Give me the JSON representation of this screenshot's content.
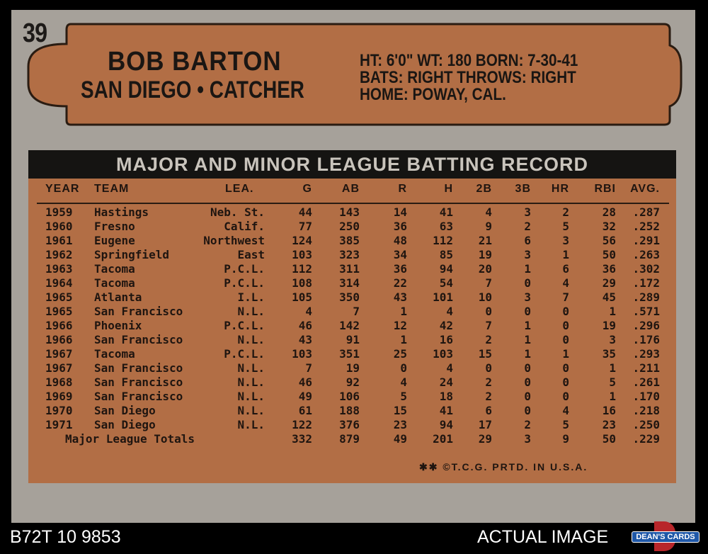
{
  "card_number": "39",
  "player": {
    "name": "BOB BARTON",
    "team_line": "SAN DIEGO • CATCHER",
    "bio_line1": "HT: 6'0\"   WT: 180   BORN: 7-30-41",
    "bio_line2": "BATS: RIGHT          THROWS: RIGHT",
    "bio_line3": "HOME: POWAY, CAL."
  },
  "record_title": "MAJOR AND MINOR LEAGUE BATTING RECORD",
  "columns": [
    "YEAR",
    "TEAM",
    "LEA.",
    "G",
    "AB",
    "R",
    "H",
    "2B",
    "3B",
    "HR",
    "RBI",
    "AVG."
  ],
  "rows": [
    [
      "1959",
      "Hastings",
      "Neb. St.",
      "44",
      "143",
      "14",
      "41",
      "4",
      "3",
      "2",
      "28",
      ".287"
    ],
    [
      "1960",
      "Fresno",
      "Calif.",
      "77",
      "250",
      "36",
      "63",
      "9",
      "2",
      "5",
      "32",
      ".252"
    ],
    [
      "1961",
      "Eugene",
      "Northwest",
      "124",
      "385",
      "48",
      "112",
      "21",
      "6",
      "3",
      "56",
      ".291"
    ],
    [
      "1962",
      "Springfield",
      "East",
      "103",
      "323",
      "34",
      "85",
      "19",
      "3",
      "1",
      "50",
      ".263"
    ],
    [
      "1963",
      "Tacoma",
      "P.C.L.",
      "112",
      "311",
      "36",
      "94",
      "20",
      "1",
      "6",
      "36",
      ".302"
    ],
    [
      "1964",
      "Tacoma",
      "P.C.L.",
      "108",
      "314",
      "22",
      "54",
      "7",
      "0",
      "4",
      "29",
      ".172"
    ],
    [
      "1965",
      "Atlanta",
      "I.L.",
      "105",
      "350",
      "43",
      "101",
      "10",
      "3",
      "7",
      "45",
      ".289"
    ],
    [
      "1965",
      "San Francisco",
      "N.L.",
      "4",
      "7",
      "1",
      "4",
      "0",
      "0",
      "0",
      "1",
      ".571"
    ],
    [
      "1966",
      "Phoenix",
      "P.C.L.",
      "46",
      "142",
      "12",
      "42",
      "7",
      "1",
      "0",
      "19",
      ".296"
    ],
    [
      "1966",
      "San Francisco",
      "N.L.",
      "43",
      "91",
      "1",
      "16",
      "2",
      "1",
      "0",
      "3",
      ".176"
    ],
    [
      "1967",
      "Tacoma",
      "P.C.L.",
      "103",
      "351",
      "25",
      "103",
      "15",
      "1",
      "1",
      "35",
      ".293"
    ],
    [
      "1967",
      "San Francisco",
      "N.L.",
      "7",
      "19",
      "0",
      "4",
      "0",
      "0",
      "0",
      "1",
      ".211"
    ],
    [
      "1968",
      "San Francisco",
      "N.L.",
      "46",
      "92",
      "4",
      "24",
      "2",
      "0",
      "0",
      "5",
      ".261"
    ],
    [
      "1969",
      "San Francisco",
      "N.L.",
      "49",
      "106",
      "5",
      "18",
      "2",
      "0",
      "0",
      "1",
      ".170"
    ],
    [
      "1970",
      "San Diego",
      "N.L.",
      "61",
      "188",
      "15",
      "41",
      "6",
      "0",
      "4",
      "16",
      ".218"
    ],
    [
      "1971",
      "San Diego",
      "N.L.",
      "122",
      "376",
      "23",
      "94",
      "17",
      "2",
      "5",
      "23",
      ".250"
    ]
  ],
  "totals": [
    "Major League Totals",
    "332",
    "879",
    "49",
    "201",
    "29",
    "3",
    "9",
    "50",
    ".229"
  ],
  "footer_note": "✱✱ ©T.C.G. PRTD. IN U.S.A.",
  "bottom": {
    "item_code": "B72T 10 9853",
    "actual_image": "ACTUAL IMAGE",
    "logo_text": "DEAN'S CARDS"
  },
  "colors": {
    "card": "#a6a19a",
    "box": "#b26e45",
    "banner": "#151412",
    "ink": "#1f1510"
  }
}
